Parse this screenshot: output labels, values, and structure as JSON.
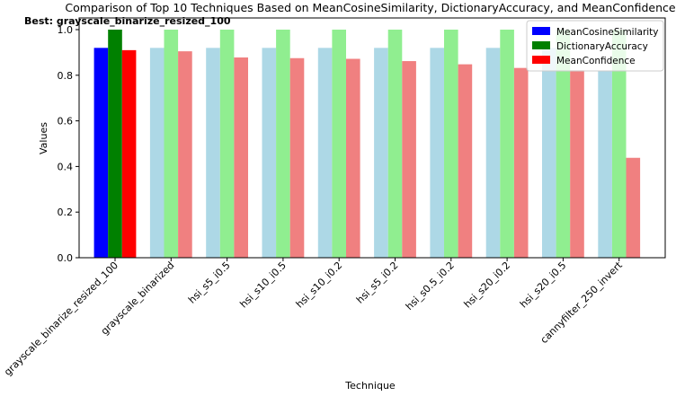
{
  "chart_data": {
    "type": "bar",
    "title": "Comparison of Top 10 Techniques Based on MeanCosineSimilarity, DictionaryAccuracy, and MeanConfidence",
    "annotation": "Best: grayscale_binarize_resized_100",
    "xlabel": "Technique",
    "ylabel": "Values",
    "ylim": [
      0,
      1.0
    ],
    "yticks": [
      "0.0",
      "0.2",
      "0.4",
      "0.6",
      "0.8",
      "1.0"
    ],
    "grid": false,
    "legend_position": "top-right",
    "categories": [
      "grayscale_binarize_resized_100",
      "grayscale_binarized",
      "hsi_s5_i0.5",
      "hsi_s10_i0.5",
      "hsi_s10_i0.2",
      "hsi_s5_i0.2",
      "hsi_s0.5_i0.2",
      "hsi_s20_i0.2",
      "hsi_s20_i0.5",
      "cannyfilter_250_invert"
    ],
    "series": [
      {
        "name": "MeanCosineSimilarity",
        "values": [
          0.92,
          0.92,
          0.92,
          0.92,
          0.92,
          0.92,
          0.92,
          0.92,
          0.92,
          0.82
        ]
      },
      {
        "name": "DictionaryAccuracy",
        "values": [
          1.0,
          1.0,
          1.0,
          1.0,
          1.0,
          1.0,
          1.0,
          1.0,
          1.0,
          1.0
        ]
      },
      {
        "name": "MeanConfidence",
        "values": [
          0.91,
          0.905,
          0.878,
          0.875,
          0.872,
          0.862,
          0.848,
          0.832,
          0.822,
          0.438
        ]
      }
    ],
    "legend_colors": [
      "#0000ff",
      "#008000",
      "#ff0000"
    ],
    "highlight_colors": [
      "#0000ff",
      "#008000",
      "#ff0000"
    ],
    "normal_colors": [
      "#add8e6",
      "#90ee90",
      "#f08080"
    ],
    "highlight_index": 0
  }
}
